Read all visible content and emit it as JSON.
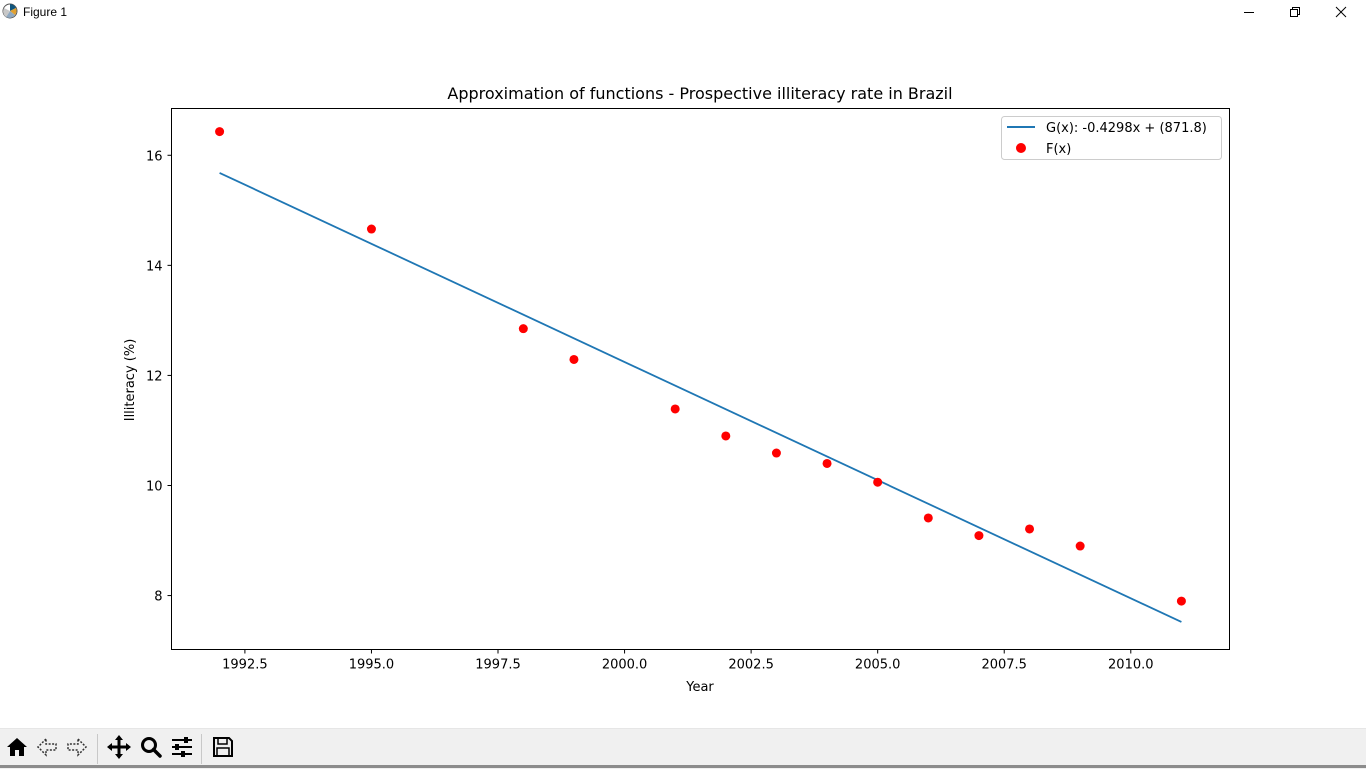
{
  "window": {
    "title": "Figure 1",
    "icons": {
      "app": "matplotlib-logo-icon",
      "minimize": "minimize-icon",
      "maximize": "restore-icon",
      "close": "close-icon"
    }
  },
  "toolbar": {
    "buttons": [
      {
        "name": "home",
        "icon": "home-icon"
      },
      {
        "name": "back",
        "icon": "back-arrow-icon"
      },
      {
        "name": "forward",
        "icon": "forward-arrow-icon"
      },
      {
        "name": "pan",
        "icon": "pan-move-icon"
      },
      {
        "name": "zoom",
        "icon": "zoom-magnifier-icon"
      },
      {
        "name": "configure-subplots",
        "icon": "sliders-icon"
      },
      {
        "name": "save",
        "icon": "save-floppy-icon"
      }
    ]
  },
  "chart_data": {
    "type": "scatter",
    "title": "Approximation of functions - Prospective illiteracy rate in Brazil",
    "xlabel": "Year",
    "ylabel": "Illiteracy (%)",
    "xlim": [
      1991.05,
      2011.95
    ],
    "ylim": [
      7.02,
      16.85
    ],
    "xticks": [
      1992.5,
      1995.0,
      1997.5,
      2000.0,
      2002.5,
      2005.0,
      2007.5,
      2010.0
    ],
    "xtick_labels": [
      "1992.5",
      "1995.0",
      "1997.5",
      "2000.0",
      "2002.5",
      "2005.0",
      "2007.5",
      "2010.0"
    ],
    "yticks": [
      8,
      10,
      12,
      14,
      16
    ],
    "ytick_labels": [
      "8",
      "10",
      "12",
      "14",
      "16"
    ],
    "grid": false,
    "legend_position": "upper right",
    "series": [
      {
        "name": "G(x): -0.4298x + (871.8)",
        "kind": "line",
        "color": "#1f77b4",
        "x": [
          1992,
          2011
        ],
        "y": [
          15.68,
          7.52
        ]
      },
      {
        "name": "F(x)",
        "kind": "scatter",
        "color": "#ff0000",
        "x": [
          1992,
          1995,
          1998,
          1999,
          2001,
          2002,
          2003,
          2004,
          2005,
          2006,
          2007,
          2008,
          2009,
          2011
        ],
        "y": [
          16.43,
          14.66,
          12.85,
          12.29,
          11.39,
          10.9,
          10.59,
          10.4,
          10.06,
          9.41,
          9.09,
          9.21,
          8.9,
          7.9
        ]
      }
    ]
  }
}
